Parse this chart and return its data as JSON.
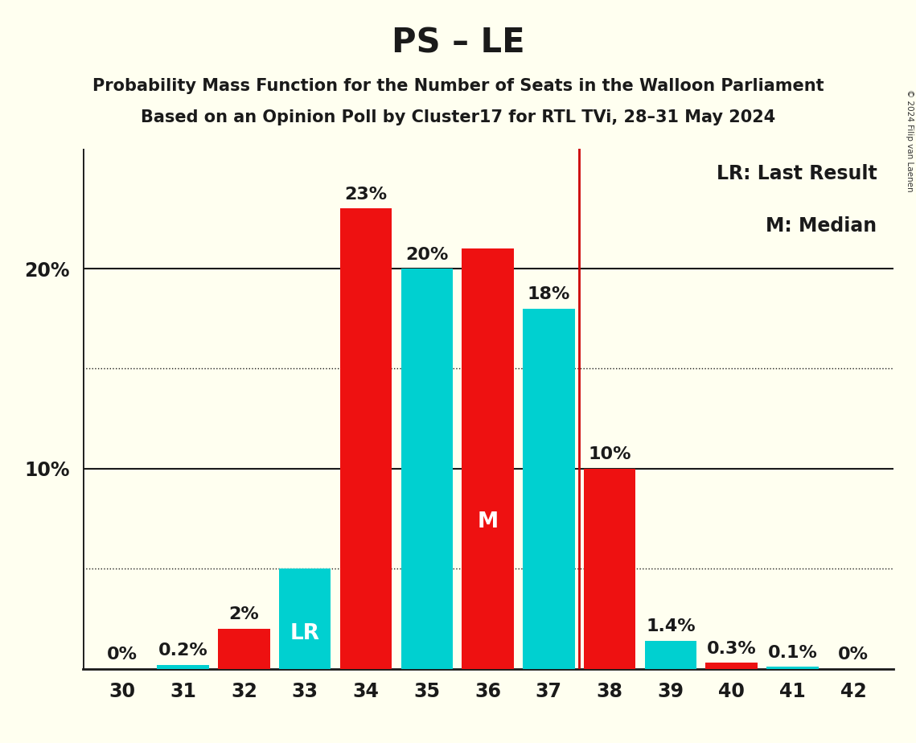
{
  "title": "PS – LE",
  "subtitle1": "Probability Mass Function for the Number of Seats in the Walloon Parliament",
  "subtitle2": "Based on an Opinion Poll by Cluster17 for RTL TVi, 28–31 May 2024",
  "copyright": "© 2024 Filip van Laenen",
  "seats": [
    30,
    31,
    32,
    33,
    34,
    35,
    36,
    37,
    38,
    39,
    40,
    41,
    42
  ],
  "values": [
    0.0,
    0.2,
    2.0,
    5.0,
    23.0,
    20.0,
    21.0,
    18.0,
    10.0,
    1.4,
    0.3,
    0.1,
    0.0
  ],
  "colors": [
    "#ee1111",
    "#00d0d0",
    "#ee1111",
    "#00d0d0",
    "#ee1111",
    "#00d0d0",
    "#ee1111",
    "#00d0d0",
    "#ee1111",
    "#00d0d0",
    "#ee1111",
    "#00d0d0",
    "#ee1111"
  ],
  "bar_labels": [
    "0%",
    "0.2%",
    "2%",
    "LR",
    "23%",
    "20%",
    "M",
    "18%",
    "10%",
    "1.4%",
    "0.3%",
    "0.1%",
    "0%"
  ],
  "bar_label_inside": [
    false,
    false,
    false,
    true,
    false,
    false,
    true,
    false,
    false,
    false,
    false,
    false,
    false
  ],
  "bar_label_colors_outside": "#1a1a1a",
  "bar_label_colors_inside": "#ffffff",
  "lr_line_seat_after": 37,
  "lr_line_color": "#cc0000",
  "background_color": "#fffff0",
  "text_color": "#1a1a1a",
  "legend_text1": "LR: Last Result",
  "legend_text2": "M: Median",
  "ylim": [
    0,
    26
  ],
  "dotted_lines": [
    5,
    15
  ],
  "solid_lines": [
    10,
    20
  ],
  "major_label_yticks": [
    10,
    20
  ],
  "bar_width": 0.85,
  "xlim_left": 29.35,
  "xlim_right": 42.65
}
